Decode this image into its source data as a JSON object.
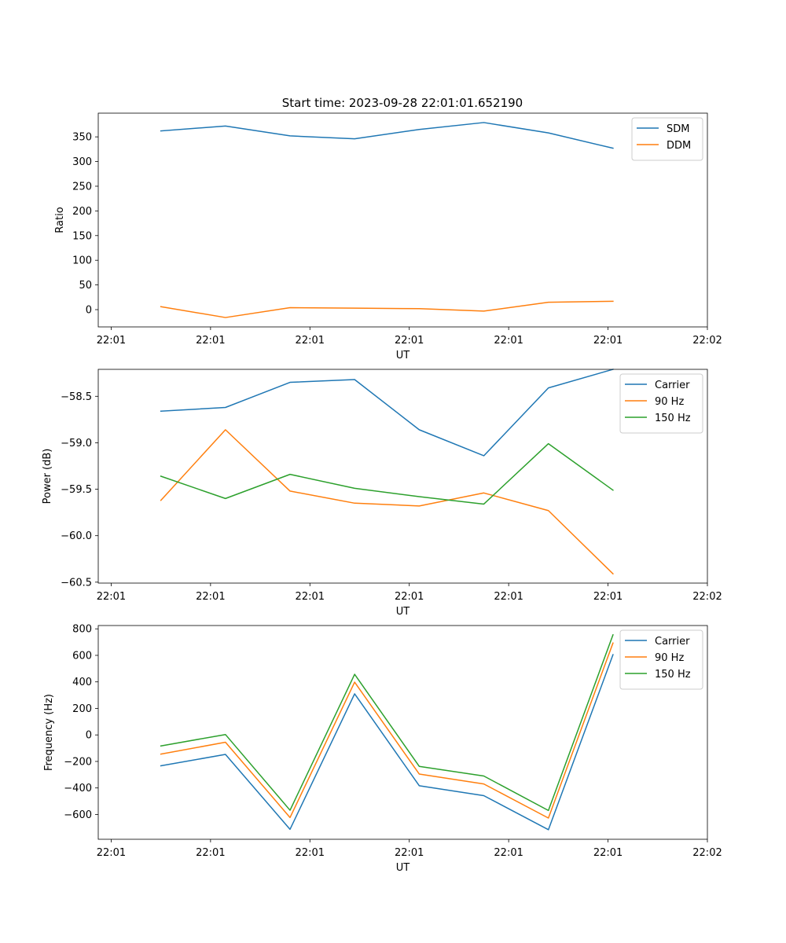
{
  "figure_title": "Start time: 2023-09-28 22:01:01.652190",
  "chart_data": [
    {
      "type": "line",
      "id": "ratio",
      "title": "Start time: 2023-09-28 22:01:01.652190",
      "xlabel": "UT",
      "ylabel": "Ratio",
      "x": [
        0.5,
        1.15,
        1.8,
        2.45,
        3.1,
        3.75,
        4.4,
        5.05
      ],
      "xlim": [
        -0.13,
        6.0
      ],
      "xticks": [
        0,
        1,
        2,
        3,
        4,
        5,
        6
      ],
      "xtick_labels": [
        "22:01",
        "22:01",
        "22:01",
        "22:01",
        "22:01",
        "22:01",
        "22:02"
      ],
      "ylim": [
        -35,
        398
      ],
      "yticks": [
        0,
        50,
        100,
        150,
        200,
        250,
        300,
        350
      ],
      "ytick_labels": [
        "0",
        "50",
        "100",
        "150",
        "200",
        "250",
        "300",
        "350"
      ],
      "legend": "top-right",
      "series": [
        {
          "name": "SDM",
          "color": "#1f77b4",
          "values": [
            362,
            372,
            352,
            346,
            365,
            379,
            358,
            327
          ]
        },
        {
          "name": "DDM",
          "color": "#ff7f0e",
          "values": [
            6,
            -16,
            4,
            3,
            2,
            -3,
            15,
            17
          ]
        }
      ]
    },
    {
      "type": "line",
      "id": "power",
      "xlabel": "UT",
      "ylabel": "Power (dB)",
      "x": [
        0.5,
        1.15,
        1.8,
        2.45,
        3.1,
        3.75,
        4.4,
        5.05
      ],
      "xlim": [
        -0.13,
        6.0
      ],
      "xticks": [
        0,
        1,
        2,
        3,
        4,
        5,
        6
      ],
      "xtick_labels": [
        "22:01",
        "22:01",
        "22:01",
        "22:01",
        "22:01",
        "22:01",
        "22:02"
      ],
      "ylim": [
        -60.51,
        -58.21
      ],
      "yticks": [
        -60.5,
        -60.0,
        -59.5,
        -59.0,
        -58.5
      ],
      "ytick_labels": [
        "−60.5",
        "−60.0",
        "−59.5",
        "−59.0",
        "−58.5"
      ],
      "legend": "top-right",
      "series": [
        {
          "name": "Carrier",
          "color": "#1f77b4",
          "values": [
            -58.66,
            -58.62,
            -58.35,
            -58.32,
            -58.86,
            -59.14,
            -58.41,
            -58.21
          ]
        },
        {
          "name": "90 Hz",
          "color": "#ff7f0e",
          "values": [
            -59.62,
            -58.86,
            -59.52,
            -59.65,
            -59.68,
            -59.54,
            -59.73,
            -60.41
          ]
        },
        {
          "name": "150 Hz",
          "color": "#2ca02c",
          "values": [
            -59.36,
            -59.6,
            -59.34,
            -59.49,
            -59.58,
            -59.66,
            -59.01,
            -59.51
          ]
        }
      ]
    },
    {
      "type": "line",
      "id": "frequency",
      "xlabel": "UT",
      "ylabel": "Frequency (Hz)",
      "x": [
        0.5,
        1.15,
        1.8,
        2.45,
        3.1,
        3.75,
        4.4,
        5.05
      ],
      "xlim": [
        -0.13,
        6.0
      ],
      "xticks": [
        0,
        1,
        2,
        3,
        4,
        5,
        6
      ],
      "xtick_labels": [
        "22:01",
        "22:01",
        "22:01",
        "22:01",
        "22:01",
        "22:01",
        "22:02"
      ],
      "ylim": [
        -787,
        825
      ],
      "yticks": [
        -600,
        -400,
        -200,
        0,
        200,
        400,
        600,
        800
      ],
      "ytick_labels": [
        "−600",
        "−400",
        "−200",
        "0",
        "200",
        "400",
        "600",
        "800"
      ],
      "legend": "top-right",
      "series": [
        {
          "name": "Carrier",
          "color": "#1f77b4",
          "values": [
            -233,
            -147,
            -712,
            310,
            -383,
            -458,
            -715,
            605
          ]
        },
        {
          "name": "90 Hz",
          "color": "#ff7f0e",
          "values": [
            -145,
            -55,
            -623,
            398,
            -295,
            -370,
            -627,
            693
          ]
        },
        {
          "name": "150 Hz",
          "color": "#2ca02c",
          "values": [
            -83,
            3,
            -568,
            457,
            -237,
            -310,
            -570,
            755
          ]
        }
      ]
    }
  ]
}
